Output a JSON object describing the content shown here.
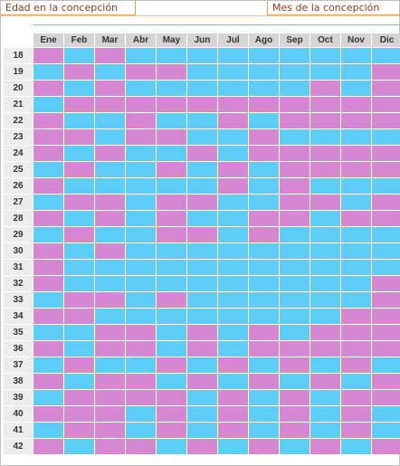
{
  "header": {
    "left_label": "Edad en la concepción",
    "right_label": "Mes de la concepción"
  },
  "colors": {
    "pink": "#d787d2",
    "blue": "#5bcdf6",
    "header_bg": "#d4d4d4",
    "age_bg": "#ececec"
  },
  "months": [
    "Ene",
    "Feb",
    "Mar",
    "Abr",
    "May",
    "Jun",
    "Jul",
    "Ago",
    "Sep",
    "Oct",
    "Nov",
    "Dic"
  ],
  "rows": [
    {
      "age": "18",
      "cells": [
        "p",
        "b",
        "p",
        "b",
        "b",
        "b",
        "b",
        "b",
        "b",
        "b",
        "b",
        "b"
      ]
    },
    {
      "age": "19",
      "cells": [
        "b",
        "p",
        "b",
        "p",
        "p",
        "b",
        "b",
        "b",
        "b",
        "b",
        "b",
        "p"
      ]
    },
    {
      "age": "20",
      "cells": [
        "p",
        "b",
        "p",
        "b",
        "b",
        "b",
        "b",
        "b",
        "b",
        "p",
        "b",
        "p"
      ]
    },
    {
      "age": "21",
      "cells": [
        "b",
        "p",
        "p",
        "p",
        "p",
        "p",
        "p",
        "p",
        "p",
        "p",
        "p",
        "p"
      ]
    },
    {
      "age": "22",
      "cells": [
        "p",
        "b",
        "b",
        "p",
        "b",
        "b",
        "p",
        "b",
        "p",
        "p",
        "p",
        "p"
      ]
    },
    {
      "age": "23",
      "cells": [
        "p",
        "p",
        "b",
        "p",
        "p",
        "b",
        "b",
        "p",
        "b",
        "b",
        "b",
        "b"
      ]
    },
    {
      "age": "24",
      "cells": [
        "p",
        "b",
        "p",
        "b",
        "b",
        "p",
        "b",
        "p",
        "p",
        "p",
        "p",
        "p"
      ]
    },
    {
      "age": "25",
      "cells": [
        "b",
        "p",
        "b",
        "b",
        "p",
        "b",
        "p",
        "b",
        "p",
        "p",
        "p",
        "p"
      ]
    },
    {
      "age": "26",
      "cells": [
        "p",
        "b",
        "b",
        "b",
        "b",
        "b",
        "p",
        "b",
        "p",
        "b",
        "b",
        "b"
      ]
    },
    {
      "age": "27",
      "cells": [
        "b",
        "p",
        "p",
        "b",
        "p",
        "p",
        "b",
        "b",
        "p",
        "p",
        "b",
        "p"
      ]
    },
    {
      "age": "28",
      "cells": [
        "p",
        "b",
        "p",
        "b",
        "p",
        "b",
        "b",
        "p",
        "p",
        "b",
        "p",
        "p"
      ]
    },
    {
      "age": "29",
      "cells": [
        "b",
        "p",
        "b",
        "b",
        "p",
        "p",
        "b",
        "p",
        "b",
        "b",
        "b",
        "b"
      ]
    },
    {
      "age": "30",
      "cells": [
        "p",
        "b",
        "p",
        "b",
        "b",
        "b",
        "b",
        "b",
        "b",
        "b",
        "b",
        "b"
      ]
    },
    {
      "age": "31",
      "cells": [
        "p",
        "b",
        "b",
        "b",
        "b",
        "b",
        "b",
        "b",
        "b",
        "b",
        "b",
        "b"
      ]
    },
    {
      "age": "32",
      "cells": [
        "p",
        "b",
        "b",
        "b",
        "b",
        "b",
        "b",
        "b",
        "b",
        "b",
        "b",
        "p"
      ]
    },
    {
      "age": "33",
      "cells": [
        "b",
        "p",
        "p",
        "b",
        "p",
        "b",
        "b",
        "b",
        "b",
        "b",
        "b",
        "p"
      ]
    },
    {
      "age": "34",
      "cells": [
        "p",
        "p",
        "b",
        "b",
        "b",
        "b",
        "b",
        "b",
        "b",
        "b",
        "p",
        "p"
      ]
    },
    {
      "age": "35",
      "cells": [
        "b",
        "b",
        "p",
        "p",
        "b",
        "p",
        "b",
        "p",
        "b",
        "p",
        "p",
        "p"
      ]
    },
    {
      "age": "36",
      "cells": [
        "p",
        "b",
        "p",
        "p",
        "b",
        "p",
        "b",
        "p",
        "p",
        "p",
        "p",
        "p"
      ]
    },
    {
      "age": "37",
      "cells": [
        "b",
        "p",
        "b",
        "b",
        "p",
        "b",
        "p",
        "b",
        "p",
        "b",
        "p",
        "b"
      ]
    },
    {
      "age": "38",
      "cells": [
        "p",
        "b",
        "p",
        "p",
        "b",
        "p",
        "b",
        "p",
        "b",
        "p",
        "b",
        "p"
      ]
    },
    {
      "age": "39",
      "cells": [
        "b",
        "p",
        "p",
        "p",
        "p",
        "b",
        "p",
        "b",
        "p",
        "b",
        "p",
        "p"
      ]
    },
    {
      "age": "40",
      "cells": [
        "p",
        "p",
        "p",
        "b",
        "p",
        "b",
        "p",
        "b",
        "p",
        "b",
        "p",
        "b"
      ]
    },
    {
      "age": "41",
      "cells": [
        "b",
        "p",
        "p",
        "b",
        "p",
        "b",
        "p",
        "b",
        "p",
        "b",
        "p",
        "b"
      ]
    },
    {
      "age": "42",
      "cells": [
        "p",
        "b",
        "p",
        "p",
        "b",
        "p",
        "b",
        "p",
        "b",
        "p",
        "b",
        "p"
      ]
    }
  ]
}
